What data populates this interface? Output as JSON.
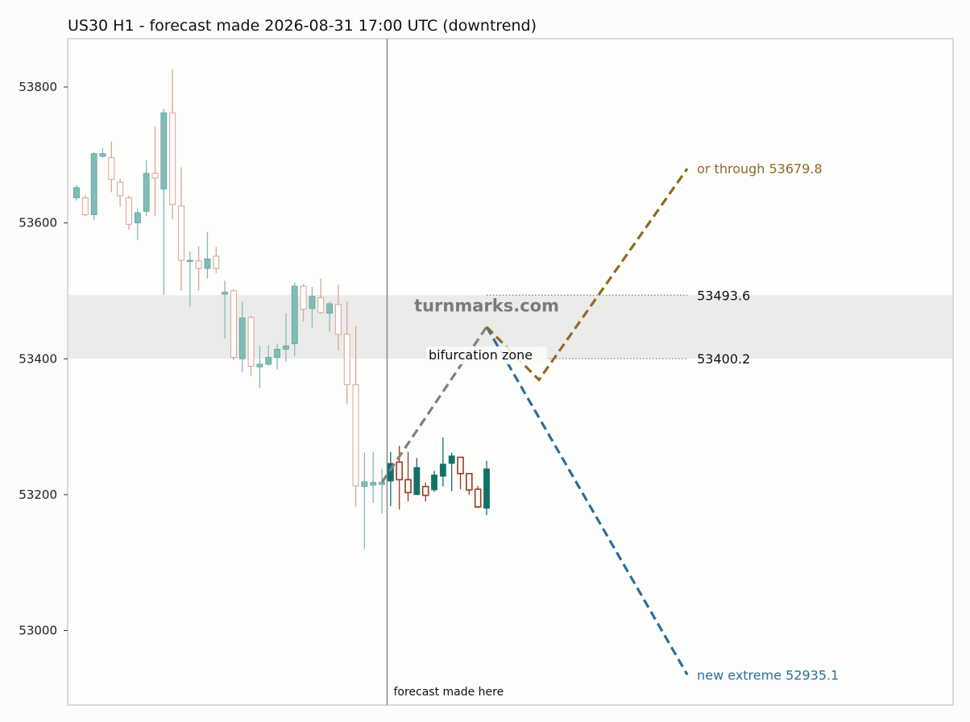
{
  "chart_data": {
    "type": "candlestick",
    "title": "US30 H1 - forecast made 2026-08-31 17:00 UTC (downtrend)",
    "watermark": "turnmarks.com",
    "ylim": [
      52890,
      53870
    ],
    "y_ticks": [
      53000,
      53200,
      53400,
      53600,
      53800
    ],
    "colors": {
      "up": "#127068",
      "down": "#9c3a22",
      "hist_up": "#7fbdb8",
      "hist_down": "#d9a394",
      "up_path": "#906a24",
      "down_path": "#2a6f9e",
      "bridge": "#808080",
      "zone": "#ebecea",
      "forecast_line": "#888888"
    },
    "history": [
      {
        "o": 53637,
        "c": 53652,
        "h": 53656,
        "l": 53633
      },
      {
        "o": 53637,
        "c": 53612,
        "h": 53641,
        "l": 53610
      },
      {
        "o": 53612,
        "c": 53702,
        "h": 53704,
        "l": 53604
      },
      {
        "o": 53698,
        "c": 53702,
        "h": 53710,
        "l": 53696
      },
      {
        "o": 53696,
        "c": 53664,
        "h": 53720,
        "l": 53645
      },
      {
        "o": 53660,
        "c": 53640,
        "h": 53665,
        "l": 53624
      },
      {
        "o": 53637,
        "c": 53598,
        "h": 53640,
        "l": 53590
      },
      {
        "o": 53600,
        "c": 53615,
        "h": 53620,
        "l": 53575
      },
      {
        "o": 53617,
        "c": 53673,
        "h": 53692,
        "l": 53610
      },
      {
        "o": 53673,
        "c": 53666,
        "h": 53742,
        "l": 53610
      },
      {
        "o": 53650,
        "c": 53762,
        "h": 53768,
        "l": 53494
      },
      {
        "o": 53762,
        "c": 53627,
        "h": 53826,
        "l": 53605
      },
      {
        "o": 53625,
        "c": 53545,
        "h": 53682,
        "l": 53500
      },
      {
        "o": 53545,
        "c": 53545,
        "h": 53558,
        "l": 53476
      },
      {
        "o": 53544,
        "c": 53533,
        "h": 53566,
        "l": 53500
      },
      {
        "o": 53533,
        "c": 53547,
        "h": 53587,
        "l": 53518
      },
      {
        "o": 53551,
        "c": 53533,
        "h": 53565,
        "l": 53526
      },
      {
        "o": 53495,
        "c": 53498,
        "h": 53515,
        "l": 53430
      },
      {
        "o": 53500,
        "c": 53402,
        "h": 53502,
        "l": 53398
      },
      {
        "o": 53400,
        "c": 53460,
        "h": 53484,
        "l": 53380
      },
      {
        "o": 53461,
        "c": 53389,
        "h": 53463,
        "l": 53375
      },
      {
        "o": 53388,
        "c": 53392,
        "h": 53419,
        "l": 53357
      },
      {
        "o": 53392,
        "c": 53402,
        "h": 53420,
        "l": 53390
      },
      {
        "o": 53402,
        "c": 53414,
        "h": 53422,
        "l": 53384
      },
      {
        "o": 53414,
        "c": 53419,
        "h": 53467,
        "l": 53396
      },
      {
        "o": 53422,
        "c": 53507,
        "h": 53512,
        "l": 53404
      },
      {
        "o": 53507,
        "c": 53473,
        "h": 53510,
        "l": 53455
      },
      {
        "o": 53474,
        "c": 53492,
        "h": 53506,
        "l": 53446
      },
      {
        "o": 53490,
        "c": 53468,
        "h": 53518,
        "l": 53466
      },
      {
        "o": 53467,
        "c": 53481,
        "h": 53484,
        "l": 53440
      },
      {
        "o": 53480,
        "c": 53436,
        "h": 53509,
        "l": 53412
      },
      {
        "o": 53436,
        "c": 53362,
        "h": 53484,
        "l": 53334
      },
      {
        "o": 53362,
        "c": 53213,
        "h": 53448,
        "l": 53182
      },
      {
        "o": 53212,
        "c": 53219,
        "h": 53262,
        "l": 53120
      },
      {
        "o": 53214,
        "c": 53218,
        "h": 53263,
        "l": 53188
      },
      {
        "o": 53215,
        "c": 53218,
        "h": 53238,
        "l": 53172
      }
    ],
    "forecast": [
      {
        "o": 53220,
        "c": 53246,
        "h": 53263,
        "l": 53183
      },
      {
        "o": 53248,
        "c": 53222,
        "h": 53272,
        "l": 53178
      },
      {
        "o": 53222,
        "c": 53203,
        "h": 53263,
        "l": 53190
      },
      {
        "o": 53200,
        "c": 53240,
        "h": 53254,
        "l": 53200
      },
      {
        "o": 53212,
        "c": 53199,
        "h": 53218,
        "l": 53190
      },
      {
        "o": 53207,
        "c": 53229,
        "h": 53235,
        "l": 53204
      },
      {
        "o": 53227,
        "c": 53245,
        "h": 53284,
        "l": 53212
      },
      {
        "o": 53246,
        "c": 53257,
        "h": 53262,
        "l": 53205
      },
      {
        "o": 53255,
        "c": 53231,
        "h": 53256,
        "l": 53208
      },
      {
        "o": 53231,
        "c": 53207,
        "h": 53231,
        "l": 53200
      },
      {
        "o": 53208,
        "c": 53182,
        "h": 53213,
        "l": 53180
      },
      {
        "o": 53180,
        "c": 53238,
        "h": 53250,
        "l": 53170
      }
    ],
    "bridge_path": [
      [
        35,
        53218
      ],
      [
        47,
        53447
      ]
    ],
    "up_path": {
      "points": [
        [
          47,
          53447
        ],
        [
          53,
          53369
        ],
        [
          70,
          53680
        ]
      ],
      "label": "or through 53679.8"
    },
    "down_path": {
      "points": [
        [
          47,
          53447
        ],
        [
          70,
          52935
        ]
      ],
      "label": "new extreme 52935.1"
    },
    "zone": {
      "low": 53400.2,
      "high": 53493.6,
      "label": "bifurcation zone",
      "high_label": "53493.6",
      "low_label": "53400.2"
    },
    "forecast_start_label": "forecast made here"
  }
}
